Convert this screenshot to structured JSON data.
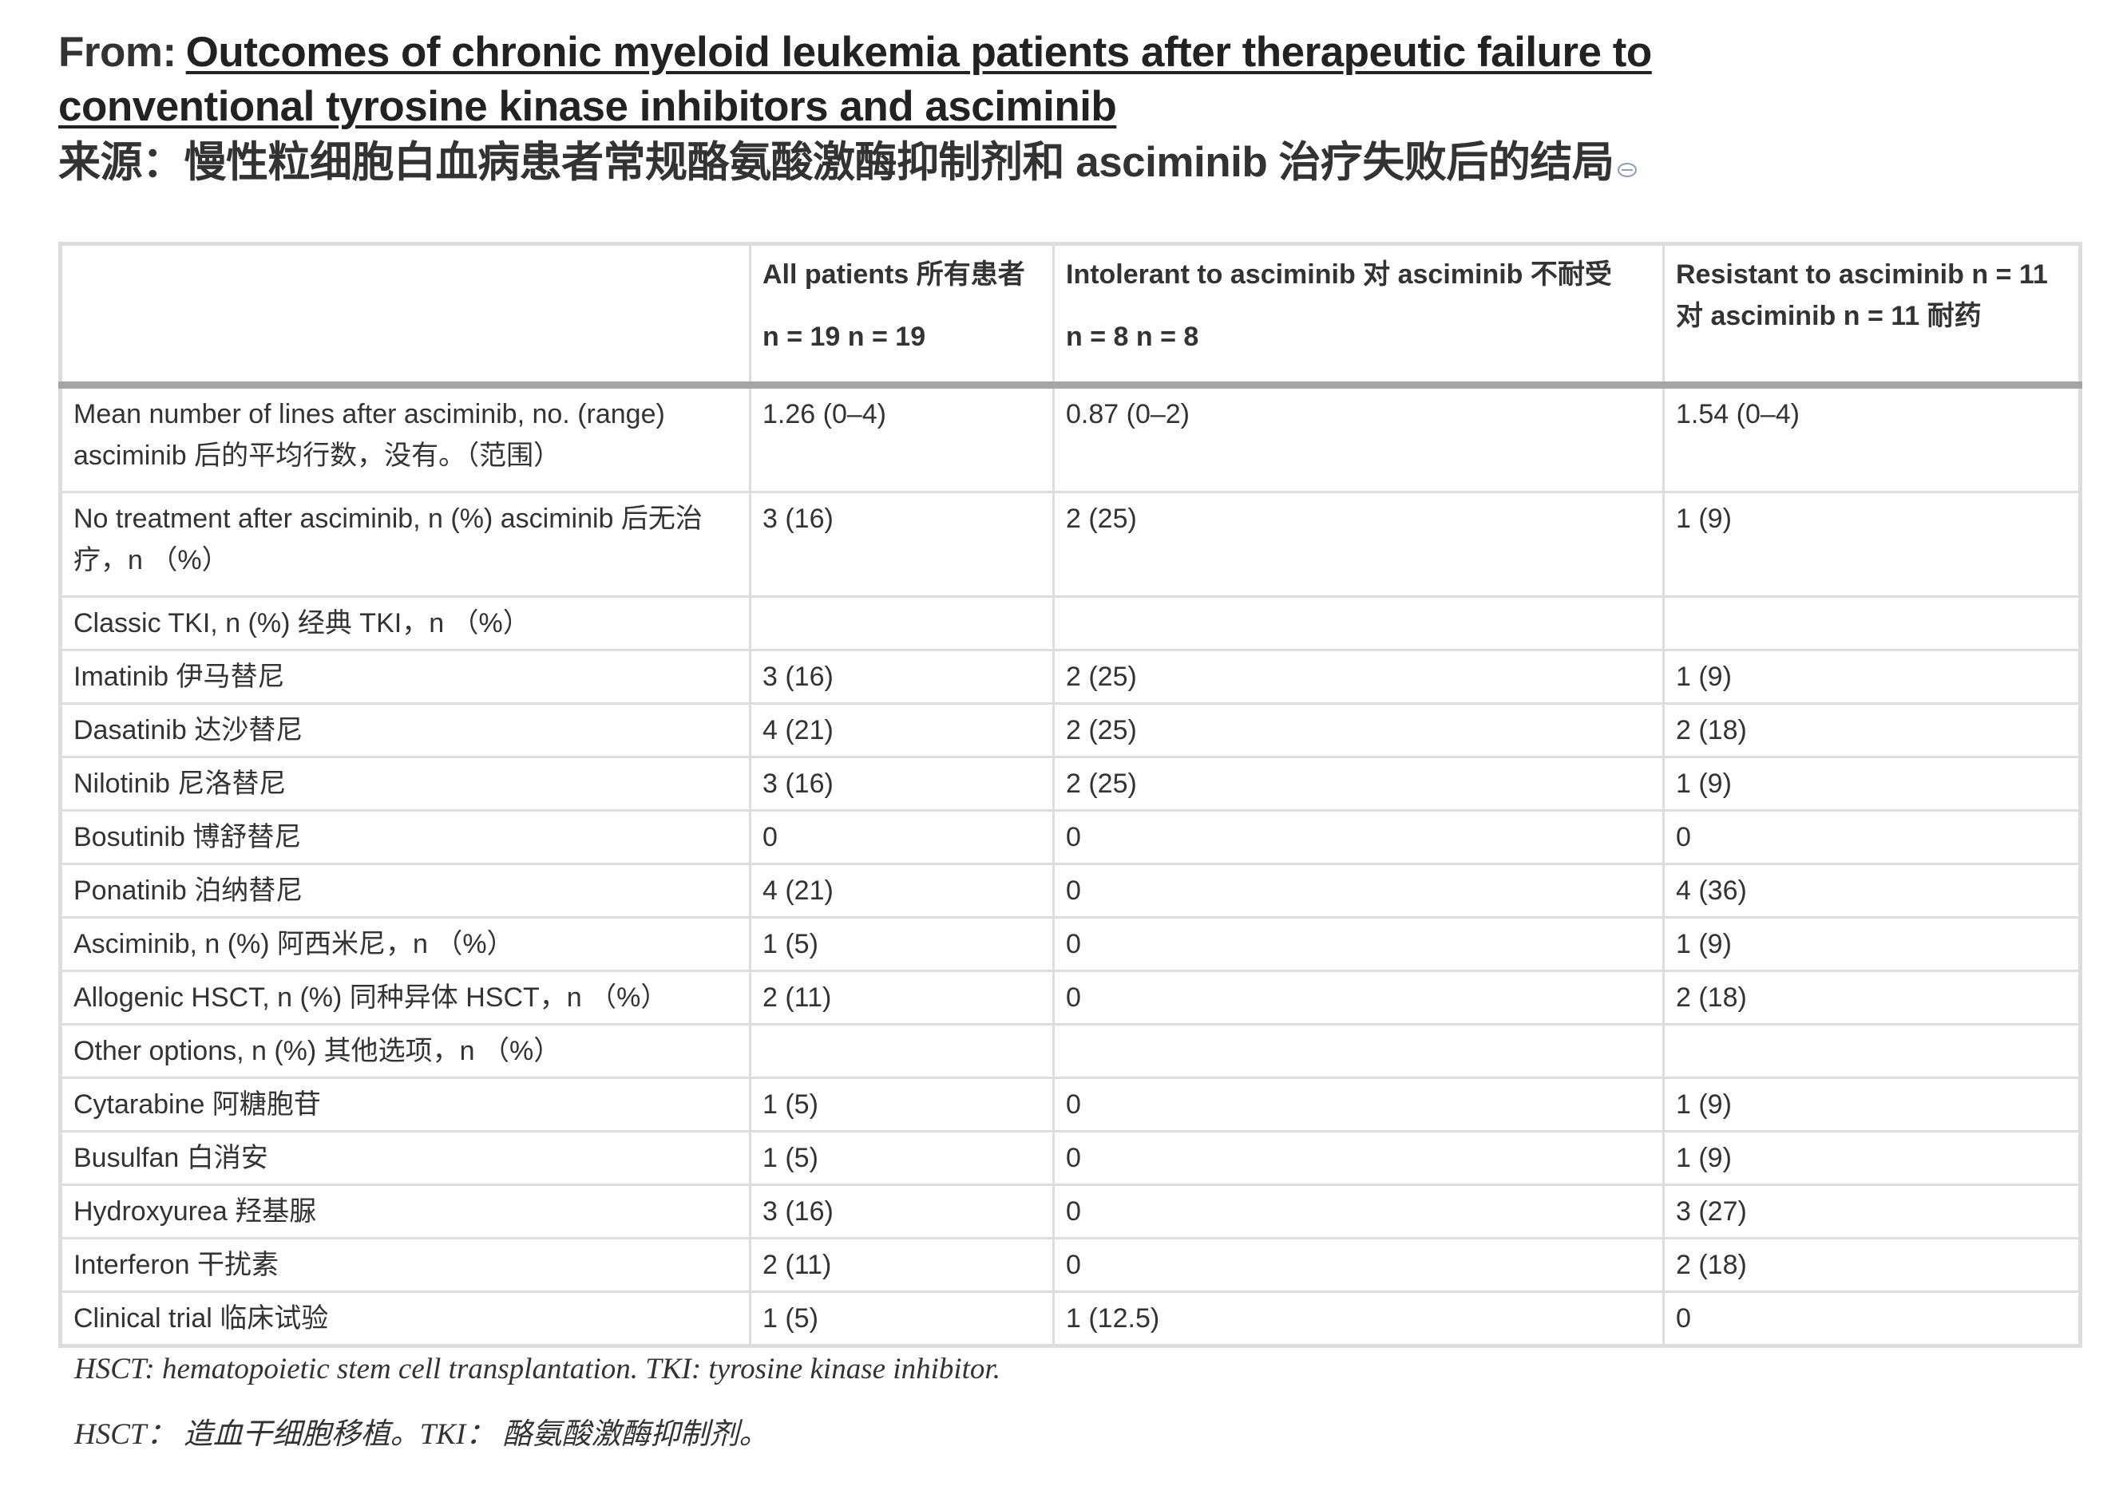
{
  "header": {
    "from_label": "From:",
    "title_line1": "Outcomes of chronic myeloid leukemia patients after therapeutic failure to",
    "title_line2": "conventional tyrosine kinase inhibitors and asciminib",
    "subtitle": "来源：慢性粒细胞白血病患者常规酪氨酸激酶抑制剂和 asciminib 治疗失败后的结局"
  },
  "table": {
    "columns": [
      {
        "label": "",
        "n": ""
      },
      {
        "label": "All patients 所有患者",
        "n": "n = 19 n = 19"
      },
      {
        "label": "Intolerant to asciminib 对 asciminib 不耐受",
        "n": "n = 8 n = 8"
      },
      {
        "label": "Resistant to asciminib n = 11 对 asciminib n = 11 耐药",
        "n": ""
      }
    ],
    "rows": [
      {
        "label": "Mean number of lines after asciminib, no. (range) asciminib 后的平均行数，没有。（范围）",
        "all": "1.26 (0–4)",
        "intolerant": "0.87 (0–2)",
        "resistant": "1.54 (0–4)"
      },
      {
        "label": "No treatment after asciminib, n (%) asciminib 后无治疗，n （%）",
        "all": "3 (16)",
        "intolerant": "2 (25)",
        "resistant": "1 (9)"
      },
      {
        "label": "Classic TKI, n (%) 经典 TKI，n （%）",
        "all": "",
        "intolerant": "",
        "resistant": ""
      },
      {
        "label": "Imatinib 伊马替尼",
        "all": "3 (16)",
        "intolerant": "2 (25)",
        "resistant": "1 (9)"
      },
      {
        "label": "Dasatinib 达沙替尼",
        "all": "4 (21)",
        "intolerant": "2 (25)",
        "resistant": "2 (18)"
      },
      {
        "label": "Nilotinib 尼洛替尼",
        "all": "3 (16)",
        "intolerant": "2 (25)",
        "resistant": "1 (9)"
      },
      {
        "label": "Bosutinib 博舒替尼",
        "all": "0",
        "intolerant": "0",
        "resistant": "0"
      },
      {
        "label": "Ponatinib 泊纳替尼",
        "all": "4 (21)",
        "intolerant": "0",
        "resistant": "4 (36)"
      },
      {
        "label": "Asciminib, n (%) 阿西米尼，n （%）",
        "all": "1 (5)",
        "intolerant": "0",
        "resistant": "1 (9)"
      },
      {
        "label": "Allogenic HSCT, n (%) 同种异体 HSCT，n （%）",
        "all": "2 (11)",
        "intolerant": "0",
        "resistant": "2 (18)"
      },
      {
        "label": "Other options, n (%) 其他选项，n （%）",
        "all": "",
        "intolerant": "",
        "resistant": ""
      },
      {
        "label": "Cytarabine 阿糖胞苷",
        "all": "1 (5)",
        "intolerant": "0",
        "resistant": "1 (9)"
      },
      {
        "label": "Busulfan 白消安",
        "all": "1 (5)",
        "intolerant": "0",
        "resistant": "1 (9)"
      },
      {
        "label": "Hydroxyurea 羟基脲",
        "all": "3 (16)",
        "intolerant": "0",
        "resistant": "3 (27)"
      },
      {
        "label": "Interferon 干扰素",
        "all": "2 (11)",
        "intolerant": "0",
        "resistant": "2 (18)"
      },
      {
        "label": "Clinical trial 临床试验",
        "all": "1 (5)",
        "intolerant": "1 (12.5)",
        "resistant": "0"
      }
    ]
  },
  "footnotes": {
    "en": "HSCT: hematopoietic stem cell transplantation. TKI: tyrosine kinase inhibitor.",
    "zh": "HSCT： 造血干细胞移植。TKI： 酪氨酸激酶抑制剂。"
  },
  "icons": {
    "translate": "translate-icon"
  }
}
